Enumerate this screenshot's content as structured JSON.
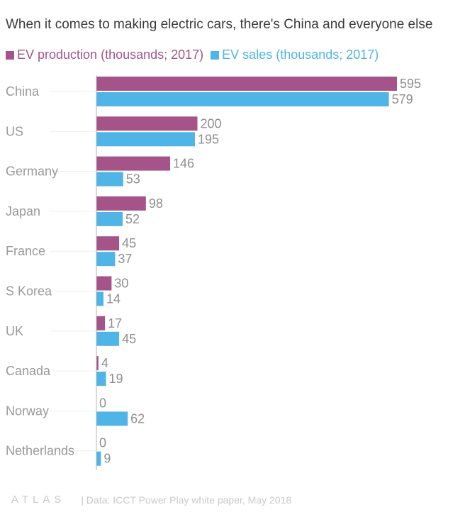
{
  "title": "When it comes to making electric cars, there's China and everyone else",
  "legend": [
    {
      "label": "EV production (thousands; 2017)",
      "color": "#a5548a"
    },
    {
      "label": "EV sales (thousands; 2017)",
      "color": "#4fb4e6"
    }
  ],
  "footer": {
    "logo": "ATLAS",
    "source": "| Data: ICCT Power Play white paper, May 2018"
  },
  "chart_data": {
    "type": "bar",
    "orientation": "horizontal",
    "categories": [
      "China",
      "US",
      "Germany",
      "Japan",
      "France",
      "S Korea",
      "UK",
      "Canada",
      "Norway",
      "Netherlands"
    ],
    "series": [
      {
        "name": "EV production (thousands; 2017)",
        "color": "#a5548a",
        "values": [
          595,
          200,
          146,
          98,
          45,
          30,
          17,
          4,
          0,
          0
        ]
      },
      {
        "name": "EV sales (thousands; 2017)",
        "color": "#4fb4e6",
        "values": [
          579,
          195,
          53,
          52,
          37,
          14,
          45,
          19,
          62,
          9
        ]
      }
    ],
    "title": "When it comes to making electric cars, there's China and everyone else",
    "xlabel": "",
    "ylabel": "",
    "xlim": [
      0,
      620
    ],
    "grid": false,
    "legend_position": "top-left",
    "data_labels": true
  }
}
